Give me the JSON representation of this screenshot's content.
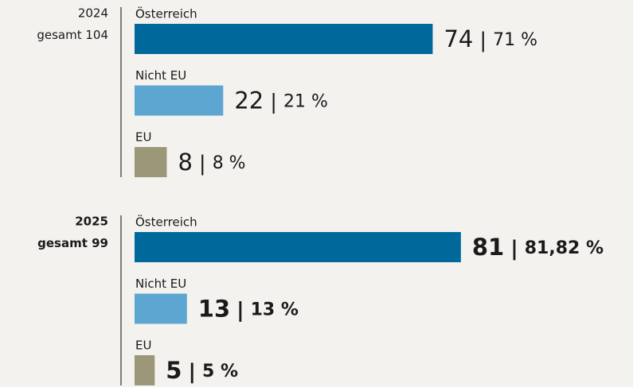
{
  "chart_data": [
    {
      "type": "bar",
      "orientation": "horizontal",
      "title": "2024",
      "total_text": "gesamt",
      "total": 104,
      "font_weight": "normal",
      "categories": [
        "Österreich",
        "Nicht EU",
        "EU"
      ],
      "values": [
        74,
        22,
        8
      ],
      "percents": [
        71,
        21,
        8
      ],
      "percent_labels": [
        "71 %",
        "21 %",
        "8 %"
      ],
      "colors": [
        "#00689b",
        "#5ea6d2",
        "#9c9778"
      ]
    },
    {
      "type": "bar",
      "orientation": "horizontal",
      "title": "2025",
      "total_text": "gesamt",
      "total": 99,
      "font_weight": "bold",
      "categories": [
        "Österreich",
        "Nicht EU",
        "EU"
      ],
      "values": [
        81,
        13,
        5
      ],
      "percents": [
        81.82,
        13,
        5
      ],
      "percent_labels": [
        "81,82 %",
        "13 %",
        "5 %"
      ],
      "colors": [
        "#00689b",
        "#5ea6d2",
        "#9c9778"
      ]
    }
  ]
}
